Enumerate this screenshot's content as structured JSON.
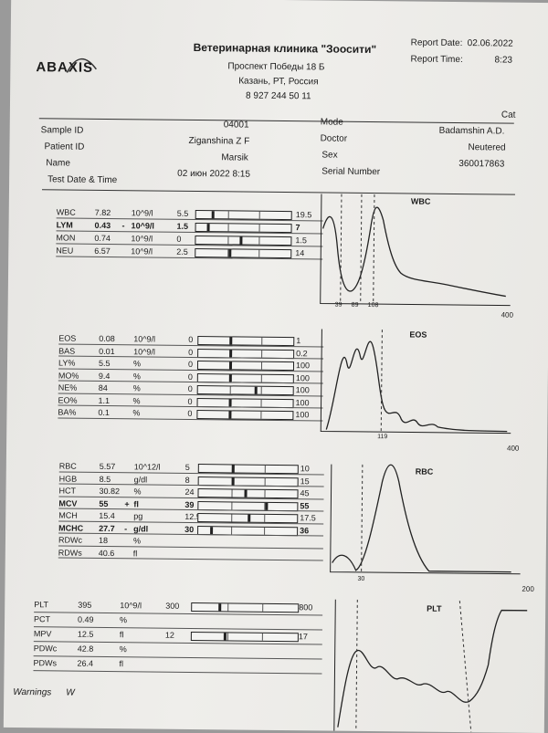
{
  "header": {
    "logo": "ABAXIS",
    "clinic": "Ветеринарная клиника \"Зоосити\"",
    "address1": "Проспект Победы 18 Б",
    "address2": "Казань, РТ, Россия",
    "phone": "8 927 244 50 11",
    "report_date_label": "Report Date:",
    "report_date": "02.06.2022",
    "report_time_label": "Report Time:",
    "report_time": "8:23"
  },
  "patient": {
    "species": "Cat",
    "sample_id_label": "Sample ID",
    "sample_id": "04001",
    "patient_id_label": "Patient ID",
    "patient_id": "Ziganshina Z F",
    "name_label": "Name",
    "name": "Marsik",
    "test_date_label": "Test Date & Time",
    "test_date": "02 июн 2022 8:15",
    "mode_label": "Mode",
    "doctor_label": "Doctor",
    "doctor": "Badamshin A.D.",
    "sex_label": "Sex",
    "sex": "Neutered",
    "serial_label": "Serial Number",
    "serial": "360017863"
  },
  "wbc_rows": [
    {
      "name": "WBC",
      "value": "7.82",
      "flag": "",
      "unit": "10^9/l",
      "low": "5.5",
      "high": "19.5",
      "pos": 0.16,
      "bold": false
    },
    {
      "name": "LYM",
      "value": "0.43",
      "flag": "-",
      "unit": "10^9/l",
      "low": "1.5",
      "high": "7",
      "pos": 0.12,
      "bold": true
    },
    {
      "name": "MON",
      "value": "0.74",
      "flag": "",
      "unit": "10^9/l",
      "low": "0",
      "high": "1.5",
      "pos": 0.46,
      "bold": false
    },
    {
      "name": "NEU",
      "value": "6.57",
      "flag": "",
      "unit": "10^9/l",
      "low": "2.5",
      "high": "14",
      "pos": 0.35,
      "bold": false
    }
  ],
  "eos_rows": [
    {
      "name": "EOS",
      "value": "0.08",
      "flag": "",
      "unit": "10^9/l",
      "low": "0",
      "high": "1",
      "pos": 0.33,
      "bold": false
    },
    {
      "name": "BAS",
      "value": "0.01",
      "flag": "",
      "unit": "10^9/l",
      "low": "0",
      "high": "0.2",
      "pos": 0.33,
      "bold": false
    },
    {
      "name": "LY%",
      "value": "5.5",
      "flag": "",
      "unit": "%",
      "low": "0",
      "high": "100",
      "pos": 0.33,
      "bold": false
    },
    {
      "name": "MO%",
      "value": "9.4",
      "flag": "",
      "unit": "%",
      "low": "0",
      "high": "100",
      "pos": 0.33,
      "bold": false
    },
    {
      "name": "NE%",
      "value": "84",
      "flag": "",
      "unit": "%",
      "low": "0",
      "high": "100",
      "pos": 0.6,
      "bold": false
    },
    {
      "name": "EO%",
      "value": "1.1",
      "flag": "",
      "unit": "%",
      "low": "0",
      "high": "100",
      "pos": 0.33,
      "bold": false
    },
    {
      "name": "BA%",
      "value": "0.1",
      "flag": "",
      "unit": "%",
      "low": "0",
      "high": "100",
      "pos": 0.33,
      "bold": false
    }
  ],
  "rbc_rows": [
    {
      "name": "RBC",
      "value": "5.57",
      "flag": "",
      "unit": "10^12/l",
      "low": "5",
      "high": "10",
      "pos": 0.33,
      "bold": false
    },
    {
      "name": "HGB",
      "value": "8.5",
      "flag": "",
      "unit": "g/dl",
      "low": "8",
      "high": "15",
      "pos": 0.33,
      "bold": false
    },
    {
      "name": "HCT",
      "value": "30.82",
      "flag": "",
      "unit": "%",
      "low": "24",
      "high": "45",
      "pos": 0.46,
      "bold": false
    },
    {
      "name": "MCV",
      "value": "55",
      "flag": "+",
      "unit": "fl",
      "low": "39",
      "high": "55",
      "pos": 0.68,
      "bold": true
    },
    {
      "name": "MCH",
      "value": "15.4",
      "flag": "",
      "unit": "pg",
      "low": "12.5",
      "high": "17.5",
      "pos": 0.5,
      "bold": false
    },
    {
      "name": "MCHC",
      "value": "27.7",
      "flag": "-",
      "unit": "g/dl",
      "low": "30",
      "high": "36",
      "pos": 0.12,
      "bold": true
    },
    {
      "name": "RDWc",
      "value": "18",
      "flag": "",
      "unit": "%",
      "low": "",
      "high": "",
      "pos": null,
      "bold": false
    },
    {
      "name": "RDWs",
      "value": "40.6",
      "flag": "",
      "unit": "fl",
      "low": "",
      "high": "",
      "pos": null,
      "bold": false
    }
  ],
  "plt_rows": [
    {
      "name": "PLT",
      "value": "395",
      "flag": "",
      "unit": "10^9/l",
      "low": "300",
      "high": "800",
      "pos": 0.25,
      "bold": false
    },
    {
      "name": "PCT",
      "value": "0.49",
      "flag": "",
      "unit": "%",
      "low": "",
      "high": "",
      "pos": null,
      "bold": false
    },
    {
      "name": "MPV",
      "value": "12.5",
      "flag": "",
      "unit": "fl",
      "low": "12",
      "high": "17",
      "pos": 0.3,
      "bold": false
    },
    {
      "name": "PDWc",
      "value": "42.8",
      "flag": "",
      "unit": "%",
      "low": "",
      "high": "",
      "pos": null,
      "bold": false
    },
    {
      "name": "PDWs",
      "value": "26.4",
      "flag": "",
      "unit": "fl",
      "low": "",
      "high": "",
      "pos": null,
      "bold": false
    }
  ],
  "histograms": {
    "wbc": {
      "title": "WBC",
      "ticks": [
        "39",
        "89",
        "108"
      ],
      "max": "400"
    },
    "eos": {
      "title": "EOS",
      "ticks": [
        "119"
      ],
      "max": "400"
    },
    "rbc": {
      "title": "RBC",
      "ticks": [
        "30"
      ],
      "max": "200"
    },
    "plt": {
      "title": "PLT"
    }
  },
  "footer": {
    "warnings_label": "Warnings",
    "warnings_value": "W"
  }
}
